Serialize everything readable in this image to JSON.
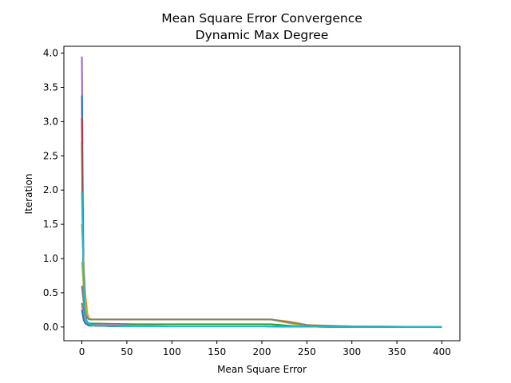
{
  "chart_data": {
    "type": "line",
    "title": "Mean Square Error Convergence",
    "subtitle": "Dynamic Max Degree",
    "xlabel": "Mean Square Error",
    "ylabel": "Iteration",
    "xlim": [
      -20,
      420
    ],
    "ylim": [
      -0.2,
      4.1
    ],
    "xticks": [
      0,
      50,
      100,
      150,
      200,
      250,
      300,
      350,
      400
    ],
    "yticks": [
      0.0,
      0.5,
      1.0,
      1.5,
      2.0,
      2.5,
      3.0,
      3.5,
      4.0
    ],
    "xtick_labels": [
      "0",
      "50",
      "100",
      "150",
      "200",
      "250",
      "300",
      "350",
      "400"
    ],
    "ytick_labels": [
      "0.0",
      "0.5",
      "1.0",
      "1.5",
      "2.0",
      "2.5",
      "3.0",
      "3.5",
      "4.0"
    ],
    "grid": false,
    "legend": "none",
    "series": [
      {
        "color": "#9467bd",
        "x": [
          0,
          1,
          2,
          3,
          5,
          8,
          15,
          40,
          100,
          200,
          300,
          400
        ],
        "y": [
          3.95,
          2.0,
          0.8,
          0.3,
          0.1,
          0.04,
          0.02,
          0.01,
          0.01,
          0.01,
          0.0,
          0.0
        ]
      },
      {
        "color": "#1f77b4",
        "x": [
          0,
          1,
          2,
          3,
          5,
          8,
          15,
          40,
          100,
          200,
          300,
          400
        ],
        "y": [
          3.38,
          1.6,
          0.6,
          0.25,
          0.08,
          0.03,
          0.02,
          0.01,
          0.01,
          0.01,
          0.0,
          0.0
        ]
      },
      {
        "color": "#d62728",
        "x": [
          0,
          1,
          2,
          3,
          5,
          8,
          15,
          40,
          100,
          200,
          300,
          400
        ],
        "y": [
          3.05,
          1.5,
          0.5,
          0.2,
          0.07,
          0.03,
          0.02,
          0.01,
          0.01,
          0.01,
          0.0,
          0.0
        ]
      },
      {
        "color": "#8c564b",
        "x": [
          0,
          1,
          2,
          3,
          5,
          8,
          15,
          40,
          100,
          200,
          300,
          400
        ],
        "y": [
          2.7,
          1.3,
          0.45,
          0.18,
          0.06,
          0.03,
          0.02,
          0.01,
          0.01,
          0.01,
          0.0,
          0.0
        ]
      },
      {
        "color": "#ff7f0e",
        "x": [
          0,
          2,
          4,
          6,
          8,
          12,
          20,
          60,
          150,
          210,
          230,
          250,
          300,
          400
        ],
        "y": [
          1.5,
          0.9,
          0.45,
          0.2,
          0.12,
          0.11,
          0.11,
          0.11,
          0.11,
          0.11,
          0.08,
          0.03,
          0.01,
          0.0
        ]
      },
      {
        "color": "#bcbd22",
        "x": [
          0,
          2,
          4,
          6,
          8,
          12,
          20,
          60,
          150,
          210,
          225,
          245,
          300,
          400
        ],
        "y": [
          0.95,
          0.6,
          0.3,
          0.16,
          0.12,
          0.11,
          0.11,
          0.11,
          0.11,
          0.11,
          0.07,
          0.02,
          0.01,
          0.0
        ]
      },
      {
        "color": "#7f7f7f",
        "x": [
          0,
          2,
          4,
          6,
          8,
          12,
          20,
          60,
          150,
          210,
          230,
          255,
          300,
          400
        ],
        "y": [
          0.6,
          0.35,
          0.2,
          0.13,
          0.11,
          0.11,
          0.11,
          0.11,
          0.11,
          0.11,
          0.07,
          0.02,
          0.01,
          0.0
        ]
      },
      {
        "color": "#2ca02c",
        "x": [
          0,
          2,
          4,
          6,
          10,
          20,
          60,
          150,
          210,
          220,
          240,
          300,
          400
        ],
        "y": [
          0.35,
          0.2,
          0.1,
          0.06,
          0.05,
          0.05,
          0.04,
          0.04,
          0.04,
          0.03,
          0.01,
          0.0,
          0.0
        ]
      },
      {
        "color": "#e377c2",
        "x": [
          0,
          2,
          4,
          6,
          10,
          20,
          40,
          60,
          100,
          200,
          300,
          400
        ],
        "y": [
          0.3,
          0.15,
          0.08,
          0.05,
          0.03,
          0.03,
          0.03,
          0.02,
          0.01,
          0.01,
          0.0,
          0.0
        ]
      },
      {
        "color": "#1f77b4",
        "x": [
          0,
          2,
          4,
          8,
          15,
          30,
          60,
          120,
          200,
          300,
          400
        ],
        "y": [
          0.25,
          0.1,
          0.05,
          0.02,
          0.02,
          0.02,
          0.01,
          0.01,
          0.01,
          0.0,
          0.0
        ]
      },
      {
        "color": "#17becf",
        "x": [
          0,
          1,
          2,
          3,
          4,
          6,
          10,
          20,
          50,
          90,
          150,
          200,
          300,
          400
        ],
        "y": [
          1.98,
          1.3,
          0.7,
          0.35,
          0.15,
          0.06,
          0.03,
          0.02,
          0.01,
          0.01,
          0.01,
          0.01,
          0.0,
          0.0
        ]
      }
    ]
  }
}
